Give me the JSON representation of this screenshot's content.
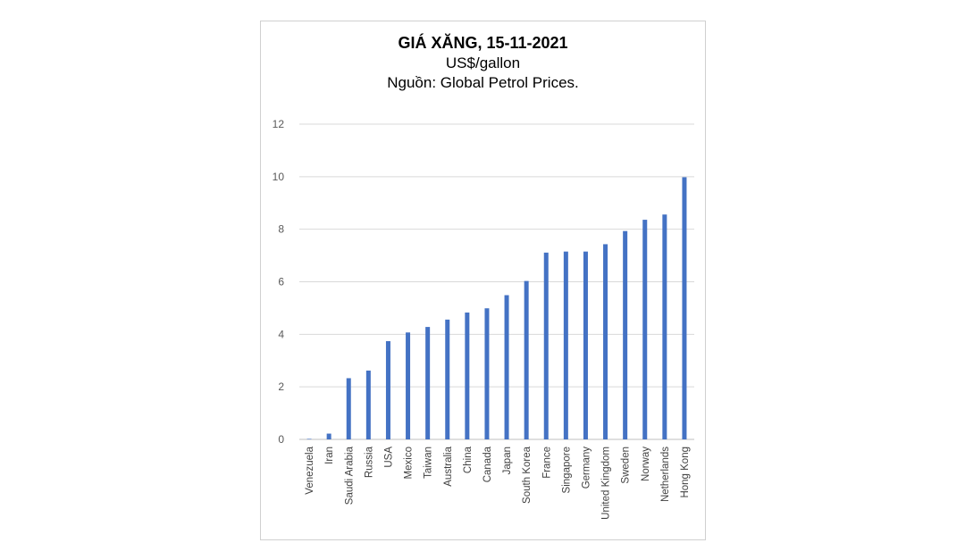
{
  "chart_data": {
    "type": "bar",
    "title": "GIÁ XĂNG, 15-11-2021",
    "subtitle": "US$/gallon",
    "source": "Nguồn: Global Petrol Prices.",
    "categories": [
      "Venezuela",
      "Iran",
      "Saudi Arabia",
      "Russia",
      "USA",
      "Mexico",
      "Taiwan",
      "Australia",
      "China",
      "Canada",
      "Japan",
      "South Korea",
      "France",
      "Singapore",
      "Germany",
      "United Kingdom",
      "Sweden",
      "Norway",
      "Netherlands",
      "Hong Kong"
    ],
    "values": [
      0.02,
      0.22,
      2.33,
      2.62,
      3.74,
      4.07,
      4.28,
      4.56,
      4.83,
      4.99,
      5.49,
      6.03,
      7.11,
      7.15,
      7.15,
      7.43,
      7.93,
      8.36,
      8.56,
      9.98
    ],
    "ylim": [
      0,
      12
    ],
    "yticks": [
      0,
      2,
      4,
      6,
      8,
      10,
      12
    ],
    "grid": true,
    "colors": {
      "bar": "#4472c4",
      "grid": "#d9d9d9",
      "axis": "#bfbfbf"
    }
  }
}
